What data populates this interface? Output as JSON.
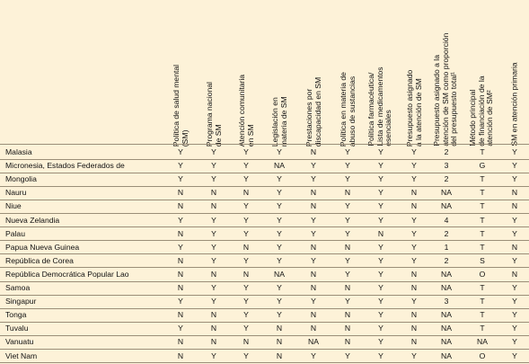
{
  "columns": [
    "Política de salud mental\n(SM)",
    "Programa nacional\nde SM",
    "Atención comunitaria\nen SM",
    "Legislación en\nmateria de SM",
    "Prestaciones por\ndiscapacidad en SM",
    "Política en materia de\nabuso de sustancias",
    "Política farmacéutica/\nLista de medicamentos\nesenciales",
    "Presupuesto asignado\na la atención de SM",
    "Presupuesto asignado a la\natención de SM como proporción\ndel presupuesto total¹",
    "Método principal\nde financiación de la\natención de SM²",
    "SM en atención primaria"
  ],
  "rows": [
    {
      "country": "Malasia",
      "values": [
        "Y",
        "Y",
        "Y",
        "Y",
        "N",
        "Y",
        "Y",
        "Y",
        "2",
        "T",
        "Y"
      ]
    },
    {
      "country": "Micronesia, Estados Federados de",
      "values": [
        "Y",
        "Y",
        "Y",
        "NA",
        "Y",
        "Y",
        "Y",
        "Y",
        "3",
        "G",
        "Y"
      ]
    },
    {
      "country": "Mongolia",
      "values": [
        "Y",
        "Y",
        "Y",
        "Y",
        "Y",
        "Y",
        "Y",
        "Y",
        "2",
        "T",
        "Y"
      ]
    },
    {
      "country": "Nauru",
      "values": [
        "N",
        "N",
        "N",
        "Y",
        "N",
        "N",
        "Y",
        "N",
        "NA",
        "T",
        "N"
      ]
    },
    {
      "country": "Niue",
      "values": [
        "N",
        "N",
        "Y",
        "Y",
        "N",
        "Y",
        "Y",
        "N",
        "NA",
        "T",
        "N"
      ]
    },
    {
      "country": "Nueva Zelandia",
      "values": [
        "Y",
        "Y",
        "Y",
        "Y",
        "Y",
        "Y",
        "Y",
        "Y",
        "4",
        "T",
        "Y"
      ]
    },
    {
      "country": "Palau",
      "values": [
        "N",
        "Y",
        "Y",
        "Y",
        "Y",
        "Y",
        "N",
        "Y",
        "2",
        "T",
        "Y"
      ]
    },
    {
      "country": "Papua Nueva Guinea",
      "values": [
        "Y",
        "Y",
        "N",
        "Y",
        "N",
        "N",
        "Y",
        "Y",
        "1",
        "T",
        "N"
      ]
    },
    {
      "country": "República de Corea",
      "values": [
        "N",
        "Y",
        "Y",
        "Y",
        "Y",
        "Y",
        "Y",
        "Y",
        "2",
        "S",
        "Y"
      ]
    },
    {
      "country": "República Democrática Popular Lao",
      "values": [
        "N",
        "N",
        "N",
        "NA",
        "N",
        "Y",
        "Y",
        "N",
        "NA",
        "O",
        "N"
      ]
    },
    {
      "country": "Samoa",
      "values": [
        "N",
        "Y",
        "Y",
        "Y",
        "N",
        "N",
        "Y",
        "N",
        "NA",
        "T",
        "Y"
      ]
    },
    {
      "country": "Singapur",
      "values": [
        "Y",
        "Y",
        "Y",
        "Y",
        "Y",
        "Y",
        "Y",
        "Y",
        "3",
        "T",
        "Y"
      ]
    },
    {
      "country": "Tonga",
      "values": [
        "N",
        "N",
        "Y",
        "Y",
        "N",
        "N",
        "Y",
        "N",
        "NA",
        "T",
        "Y"
      ]
    },
    {
      "country": "Tuvalu",
      "values": [
        "Y",
        "N",
        "Y",
        "N",
        "N",
        "N",
        "Y",
        "N",
        "NA",
        "T",
        "Y"
      ]
    },
    {
      "country": "Vanuatu",
      "values": [
        "N",
        "N",
        "N",
        "N",
        "NA",
        "N",
        "Y",
        "N",
        "NA",
        "NA",
        "Y"
      ]
    },
    {
      "country": "Viet Nam",
      "values": [
        "N",
        "Y",
        "Y",
        "N",
        "Y",
        "Y",
        "Y",
        "Y",
        "NA",
        "O",
        "Y"
      ]
    }
  ]
}
